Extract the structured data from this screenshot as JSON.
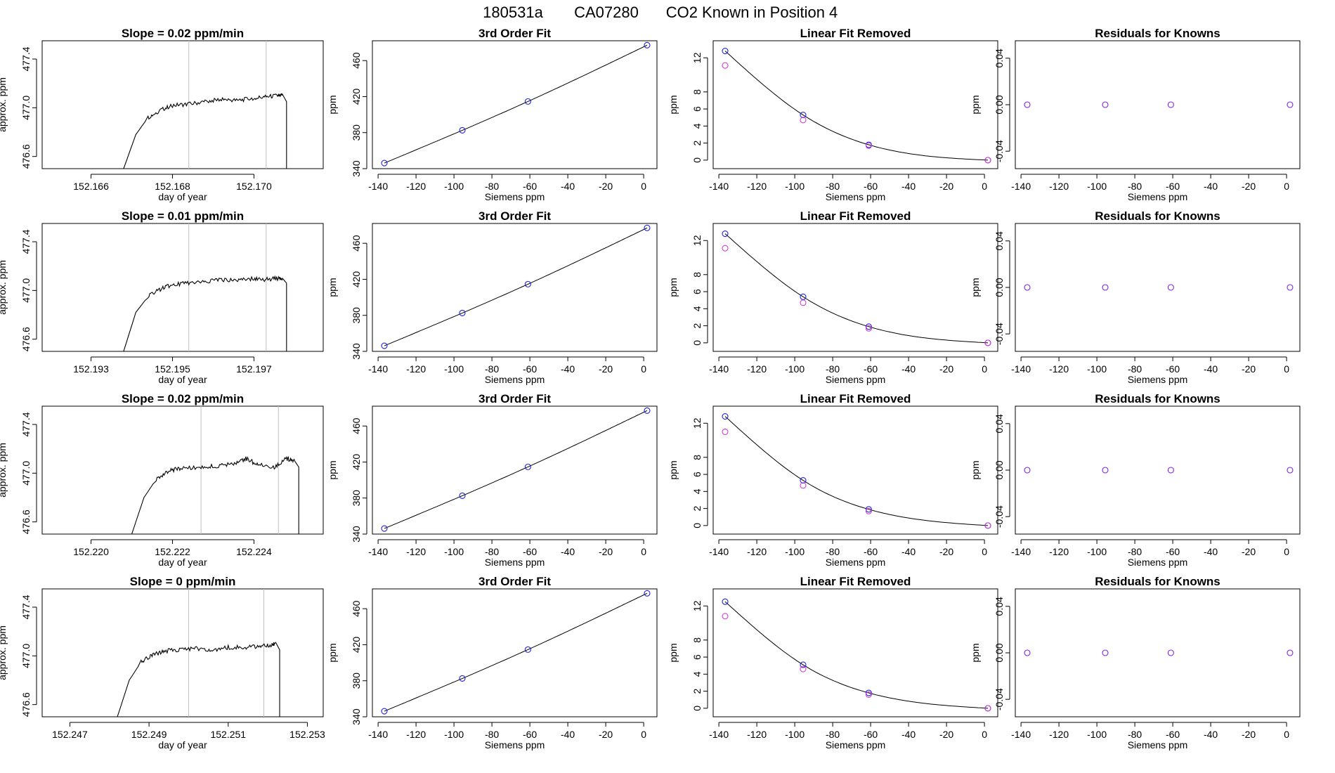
{
  "page_title": {
    "run_id": "180531a",
    "tank_id": "CA07280",
    "description": "CO2 Known in Position  4"
  },
  "colors": {
    "axis": "#000000",
    "line": "#000000",
    "spike": "#ff3030",
    "vline": "#bfbfbf",
    "point_blue": "#2020e0",
    "point_magenta": "#d040d0",
    "point_purple": "#8020e0"
  },
  "chart_data": [
    {
      "type": "line",
      "row": 1,
      "title": "Slope =  0.02  ppm/min",
      "xlabel": "day of year",
      "ylabel": "approx. ppm",
      "xlim": [
        152.1648,
        152.1717
      ],
      "ylim": [
        476.5,
        477.55
      ],
      "xticks": [
        152.166,
        152.168,
        152.17
      ],
      "xtick_labels": [
        "152.166",
        "152.168",
        "152.170"
      ],
      "yticks": [
        476.6,
        477.0,
        477.4
      ],
      "ytick_labels": [
        "476.6",
        "477.0",
        "477.4"
      ],
      "vlines": [
        152.1684,
        152.1703
      ],
      "trace": {
        "start": 152.1668,
        "end": 152.1708,
        "x": [
          152.1668,
          152.1671,
          152.1674,
          152.1677,
          152.168,
          152.1684,
          152.1688,
          152.1692,
          152.1696,
          152.17,
          152.1703,
          152.1706,
          152.1707,
          152.1708,
          152.1708
        ],
        "y": [
          476.5,
          476.78,
          476.92,
          476.98,
          477.02,
          477.03,
          477.05,
          477.07,
          477.06,
          477.08,
          477.09,
          477.1,
          477.11,
          477.05,
          476.5
        ]
      }
    },
    {
      "type": "scatter",
      "row": 1,
      "title": "3rd Order Fit",
      "xlabel": "Siemens ppm",
      "ylabel": "ppm",
      "xlim": [
        -143,
        7
      ],
      "ylim": [
        340,
        482
      ],
      "xticks": [
        -140,
        -120,
        -100,
        -80,
        -60,
        -40,
        -20,
        0
      ],
      "xtick_labels": [
        "-140",
        "-120",
        "-100",
        "-80",
        "-60",
        "-40",
        "-20",
        "0"
      ],
      "yticks": [
        340,
        380,
        420,
        460
      ],
      "ytick_labels": [
        "340",
        "380",
        "420",
        "460"
      ],
      "points": {
        "x": [
          -136.7,
          -95.6,
          -61.0,
          1.8
        ],
        "y": [
          346.2,
          382.6,
          414.6,
          477.1
        ]
      },
      "curve": {
        "x": [
          -136.7,
          -95.6,
          -61.0,
          1.8
        ],
        "y": [
          346.2,
          382.6,
          414.6,
          477.1
        ]
      }
    },
    {
      "type": "scatter",
      "row": 1,
      "title": "Linear Fit Removed",
      "xlabel": "Siemens ppm",
      "ylabel": "ppm",
      "xlim": [
        -143,
        7
      ],
      "ylim": [
        -1,
        14
      ],
      "xticks": [
        -140,
        -120,
        -100,
        -80,
        -60,
        -40,
        -20,
        0
      ],
      "xtick_labels": [
        "-140",
        "-120",
        "-100",
        "-80",
        "-60",
        "-40",
        "-20",
        "0"
      ],
      "yticks": [
        0,
        2,
        4,
        6,
        8,
        12
      ],
      "ytick_labels": [
        "0",
        "2",
        "4",
        "6",
        "8",
        "12"
      ],
      "series": [
        {
          "name": "blue",
          "x": [
            -136.7,
            -95.6,
            -61.0,
            1.8
          ],
          "y": [
            12.8,
            5.3,
            1.8,
            0
          ]
        },
        {
          "name": "magenta",
          "x": [
            -136.7,
            -95.6,
            -61.0,
            1.8
          ],
          "y": [
            11.1,
            4.7,
            1.7,
            0
          ]
        }
      ],
      "curve": {
        "x": [
          -136.7,
          -95.6,
          -61.0,
          1.8
        ],
        "y": [
          12.8,
          5.3,
          1.8,
          0
        ]
      }
    },
    {
      "type": "scatter",
      "row": 1,
      "title": "Residuals for Knowns",
      "xlabel": "Siemens ppm",
      "ylabel": "ppm",
      "xlim": [
        -143,
        7
      ],
      "ylim": [
        -0.055,
        0.055
      ],
      "xticks": [
        -140,
        -120,
        -100,
        -80,
        -60,
        -40,
        -20,
        0
      ],
      "xtick_labels": [
        "-140",
        "-120",
        "-100",
        "-80",
        "-60",
        "-40",
        "-20",
        "0"
      ],
      "yticks": [
        -0.04,
        0.0,
        0.04
      ],
      "ytick_labels": [
        "-0.04",
        "0.00",
        "0.04"
      ],
      "points": {
        "x": [
          -136.7,
          -95.6,
          -61.0,
          1.8
        ],
        "y": [
          0,
          0,
          0,
          0
        ]
      }
    },
    {
      "type": "line",
      "row": 2,
      "title": "Slope =  0.01  ppm/min",
      "xlabel": "day of year",
      "ylabel": "approx. ppm",
      "xlim": [
        152.1918,
        152.1987
      ],
      "ylim": [
        476.5,
        477.55
      ],
      "xticks": [
        152.193,
        152.195,
        152.197
      ],
      "xtick_labels": [
        "152.193",
        "152.195",
        "152.197"
      ],
      "yticks": [
        476.6,
        477.0,
        477.4
      ],
      "ytick_labels": [
        "476.6",
        "477.0",
        "477.4"
      ],
      "vlines": [
        152.1954,
        152.1973
      ],
      "trace": {
        "start": 152.1938,
        "end": 152.1978,
        "x": [
          152.1938,
          152.1941,
          152.1944,
          152.1947,
          152.195,
          152.1954,
          152.1958,
          152.1962,
          152.1966,
          152.197,
          152.1973,
          152.1976,
          152.1977,
          152.1978,
          152.1978
        ],
        "y": [
          476.5,
          476.82,
          476.95,
          477.01,
          477.05,
          477.06,
          477.07,
          477.09,
          477.08,
          477.1,
          477.09,
          477.1,
          477.1,
          477.06,
          476.5
        ]
      }
    },
    {
      "type": "scatter",
      "row": 2,
      "title": "3rd Order Fit",
      "xlabel": "Siemens ppm",
      "ylabel": "ppm",
      "xlim": [
        -143,
        7
      ],
      "ylim": [
        340,
        482
      ],
      "xticks": [
        -140,
        -120,
        -100,
        -80,
        -60,
        -40,
        -20,
        0
      ],
      "xtick_labels": [
        "-140",
        "-120",
        "-100",
        "-80",
        "-60",
        "-40",
        "-20",
        "0"
      ],
      "yticks": [
        340,
        380,
        420,
        460
      ],
      "ytick_labels": [
        "340",
        "380",
        "420",
        "460"
      ],
      "points": {
        "x": [
          -136.7,
          -95.6,
          -61.0,
          1.8
        ],
        "y": [
          346.2,
          382.6,
          414.6,
          477.1
        ]
      },
      "curve": {
        "x": [
          -136.7,
          -95.6,
          -61.0,
          1.8
        ],
        "y": [
          346.2,
          382.6,
          414.6,
          477.1
        ]
      }
    },
    {
      "type": "scatter",
      "row": 2,
      "title": "Linear Fit Removed",
      "xlabel": "Siemens ppm",
      "ylabel": "ppm",
      "xlim": [
        -143,
        7
      ],
      "ylim": [
        -1,
        14
      ],
      "xticks": [
        -140,
        -120,
        -100,
        -80,
        -60,
        -40,
        -20,
        0
      ],
      "xtick_labels": [
        "-140",
        "-120",
        "-100",
        "-80",
        "-60",
        "-40",
        "-20",
        "0"
      ],
      "yticks": [
        0,
        2,
        4,
        6,
        8,
        12
      ],
      "ytick_labels": [
        "0",
        "2",
        "4",
        "6",
        "8",
        "12"
      ],
      "series": [
        {
          "name": "blue",
          "x": [
            -136.7,
            -95.6,
            -61.0,
            1.8
          ],
          "y": [
            12.8,
            5.4,
            1.9,
            0
          ]
        },
        {
          "name": "magenta",
          "x": [
            -136.7,
            -95.6,
            -61.0,
            1.8
          ],
          "y": [
            11.1,
            4.7,
            1.7,
            0
          ]
        }
      ],
      "curve": {
        "x": [
          -136.7,
          -95.6,
          -61.0,
          1.8
        ],
        "y": [
          12.8,
          5.4,
          1.9,
          0
        ]
      }
    },
    {
      "type": "scatter",
      "row": 2,
      "title": "Residuals for Knowns",
      "xlabel": "Siemens ppm",
      "ylabel": "ppm",
      "xlim": [
        -143,
        7
      ],
      "ylim": [
        -0.055,
        0.055
      ],
      "xticks": [
        -140,
        -120,
        -100,
        -80,
        -60,
        -40,
        -20,
        0
      ],
      "xtick_labels": [
        "-140",
        "-120",
        "-100",
        "-80",
        "-60",
        "-40",
        "-20",
        "0"
      ],
      "yticks": [
        -0.04,
        0.0,
        0.04
      ],
      "ytick_labels": [
        "-0.04",
        "0.00",
        "0.04"
      ],
      "points": {
        "x": [
          -136.7,
          -95.6,
          -61.0,
          1.8
        ],
        "y": [
          0,
          0,
          0,
          0
        ]
      }
    },
    {
      "type": "line",
      "row": 3,
      "title": "Slope =  0.02  ppm/min",
      "xlabel": "day of year",
      "ylabel": "approx. ppm",
      "xlim": [
        152.2188,
        152.2257
      ],
      "ylim": [
        476.5,
        477.55
      ],
      "xticks": [
        152.22,
        152.222,
        152.224
      ],
      "xtick_labels": [
        "152.220",
        "152.222",
        "152.224"
      ],
      "yticks": [
        476.6,
        477.0,
        477.4
      ],
      "ytick_labels": [
        "476.6",
        "477.0",
        "477.4"
      ],
      "vlines": [
        152.2227,
        152.2246
      ],
      "trace": {
        "start": 152.221,
        "end": 152.2251,
        "x": [
          152.221,
          152.2213,
          152.2216,
          152.2219,
          152.2222,
          152.2227,
          152.2231,
          152.2235,
          152.2238,
          152.2241,
          152.2245,
          152.2248,
          152.225,
          152.2251,
          152.2251
        ],
        "y": [
          476.5,
          476.8,
          476.95,
          477.02,
          477.04,
          477.05,
          477.06,
          477.08,
          477.12,
          477.07,
          477.05,
          477.12,
          477.1,
          477.05,
          476.5
        ]
      }
    },
    {
      "type": "scatter",
      "row": 3,
      "title": "3rd Order Fit",
      "xlabel": "Siemens ppm",
      "ylabel": "ppm",
      "xlim": [
        -143,
        7
      ],
      "ylim": [
        340,
        482
      ],
      "xticks": [
        -140,
        -120,
        -100,
        -80,
        -60,
        -40,
        -20,
        0
      ],
      "xtick_labels": [
        "-140",
        "-120",
        "-100",
        "-80",
        "-60",
        "-40",
        "-20",
        "0"
      ],
      "yticks": [
        340,
        380,
        420,
        460
      ],
      "ytick_labels": [
        "340",
        "380",
        "420",
        "460"
      ],
      "points": {
        "x": [
          -136.7,
          -95.6,
          -61.0,
          1.8
        ],
        "y": [
          346.2,
          382.6,
          414.6,
          477.1
        ]
      },
      "curve": {
        "x": [
          -136.7,
          -95.6,
          -61.0,
          1.8
        ],
        "y": [
          346.2,
          382.6,
          414.6,
          477.1
        ]
      }
    },
    {
      "type": "scatter",
      "row": 3,
      "title": "Linear Fit Removed",
      "xlabel": "Siemens ppm",
      "ylabel": "ppm",
      "xlim": [
        -143,
        7
      ],
      "ylim": [
        -1,
        14
      ],
      "xticks": [
        -140,
        -120,
        -100,
        -80,
        -60,
        -40,
        -20,
        0
      ],
      "xtick_labels": [
        "-140",
        "-120",
        "-100",
        "-80",
        "-60",
        "-40",
        "-20",
        "0"
      ],
      "yticks": [
        0,
        2,
        4,
        6,
        8,
        12
      ],
      "ytick_labels": [
        "0",
        "2",
        "4",
        "6",
        "8",
        "12"
      ],
      "series": [
        {
          "name": "blue",
          "x": [
            -136.7,
            -95.6,
            -61.0,
            1.8
          ],
          "y": [
            12.8,
            5.3,
            1.9,
            0
          ]
        },
        {
          "name": "magenta",
          "x": [
            -136.7,
            -95.6,
            -61.0,
            1.8
          ],
          "y": [
            11.0,
            4.7,
            1.7,
            0
          ]
        }
      ],
      "curve": {
        "x": [
          -136.7,
          -95.6,
          -61.0,
          1.8
        ],
        "y": [
          12.8,
          5.3,
          1.9,
          0
        ]
      }
    },
    {
      "type": "scatter",
      "row": 3,
      "title": "Residuals for Knowns",
      "xlabel": "Siemens ppm",
      "ylabel": "ppm",
      "xlim": [
        -143,
        7
      ],
      "ylim": [
        -0.055,
        0.055
      ],
      "xticks": [
        -140,
        -120,
        -100,
        -80,
        -60,
        -40,
        -20,
        0
      ],
      "xtick_labels": [
        "-140",
        "-120",
        "-100",
        "-80",
        "-60",
        "-40",
        "-20",
        "0"
      ],
      "yticks": [
        -0.04,
        0.0,
        0.04
      ],
      "ytick_labels": [
        "-0.04",
        "0.00",
        "0.04"
      ],
      "points": {
        "x": [
          -136.7,
          -95.6,
          -61.0,
          1.8
        ],
        "y": [
          0,
          0,
          0,
          0
        ]
      }
    },
    {
      "type": "line",
      "row": 4,
      "title": "Slope =  0  ppm/min",
      "xlabel": "day of year",
      "ylabel": "approx. ppm",
      "xlim": [
        152.2463,
        152.2534
      ],
      "ylim": [
        476.5,
        477.55
      ],
      "xticks": [
        152.247,
        152.249,
        152.251,
        152.253
      ],
      "xtick_labels": [
        "152.247",
        "152.249",
        "152.251",
        "152.253"
      ],
      "yticks": [
        476.6,
        477.0,
        477.4
      ],
      "ytick_labels": [
        "476.6",
        "477.0",
        "477.4"
      ],
      "vlines": [
        152.25,
        152.2519
      ],
      "trace": {
        "start": 152.2482,
        "end": 152.2523,
        "x": [
          152.2482,
          152.2485,
          152.2488,
          152.2491,
          152.2494,
          152.2498,
          152.2502,
          152.2506,
          152.251,
          152.2514,
          152.2518,
          152.2521,
          152.2522,
          152.2523,
          152.2523
        ],
        "y": [
          476.5,
          476.8,
          476.95,
          477.01,
          477.04,
          477.05,
          477.06,
          477.05,
          477.07,
          477.07,
          477.08,
          477.09,
          477.11,
          477.05,
          476.5
        ]
      }
    },
    {
      "type": "scatter",
      "row": 4,
      "title": "3rd Order Fit",
      "xlabel": "Siemens ppm",
      "ylabel": "ppm",
      "xlim": [
        -143,
        7
      ],
      "ylim": [
        340,
        482
      ],
      "xticks": [
        -140,
        -120,
        -100,
        -80,
        -60,
        -40,
        -20,
        0
      ],
      "xtick_labels": [
        "-140",
        "-120",
        "-100",
        "-80",
        "-60",
        "-40",
        "-20",
        "0"
      ],
      "yticks": [
        340,
        380,
        420,
        460
      ],
      "ytick_labels": [
        "340",
        "380",
        "420",
        "460"
      ],
      "points": {
        "x": [
          -136.7,
          -95.6,
          -61.0,
          1.8
        ],
        "y": [
          346.2,
          382.6,
          414.6,
          477.1
        ]
      },
      "curve": {
        "x": [
          -136.7,
          -95.6,
          -61.0,
          1.8
        ],
        "y": [
          346.2,
          382.6,
          414.6,
          477.1
        ]
      }
    },
    {
      "type": "scatter",
      "row": 4,
      "title": "Linear Fit Removed",
      "xlabel": "Siemens ppm",
      "ylabel": "ppm",
      "xlim": [
        -143,
        7
      ],
      "ylim": [
        -1,
        14
      ],
      "xticks": [
        -140,
        -120,
        -100,
        -80,
        -60,
        -40,
        -20,
        0
      ],
      "xtick_labels": [
        "-140",
        "-120",
        "-100",
        "-80",
        "-60",
        "-40",
        "-20",
        "0"
      ],
      "yticks": [
        0,
        2,
        4,
        6,
        8,
        12
      ],
      "ytick_labels": [
        "0",
        "2",
        "4",
        "6",
        "8",
        "12"
      ],
      "series": [
        {
          "name": "blue",
          "x": [
            -136.7,
            -95.6,
            -61.0,
            1.8
          ],
          "y": [
            12.5,
            5.1,
            1.8,
            0
          ]
        },
        {
          "name": "magenta",
          "x": [
            -136.7,
            -95.6,
            -61.0,
            1.8
          ],
          "y": [
            10.8,
            4.6,
            1.6,
            0
          ]
        }
      ],
      "curve": {
        "x": [
          -136.7,
          -95.6,
          -61.0,
          1.8
        ],
        "y": [
          12.5,
          5.1,
          1.8,
          0
        ]
      }
    },
    {
      "type": "scatter",
      "row": 4,
      "title": "Residuals for Knowns",
      "xlabel": "Siemens ppm",
      "ylabel": "ppm",
      "xlim": [
        -143,
        7
      ],
      "ylim": [
        -0.055,
        0.055
      ],
      "xticks": [
        -140,
        -120,
        -100,
        -80,
        -60,
        -40,
        -20,
        0
      ],
      "xtick_labels": [
        "-140",
        "-120",
        "-100",
        "-80",
        "-60",
        "-40",
        "-20",
        "0"
      ],
      "yticks": [
        -0.04,
        0.0,
        0.04
      ],
      "ytick_labels": [
        "-0.04",
        "0.00",
        "0.04"
      ],
      "points": {
        "x": [
          -136.7,
          -95.6,
          -61.0,
          1.8
        ],
        "y": [
          0,
          0,
          0,
          0
        ]
      }
    }
  ]
}
